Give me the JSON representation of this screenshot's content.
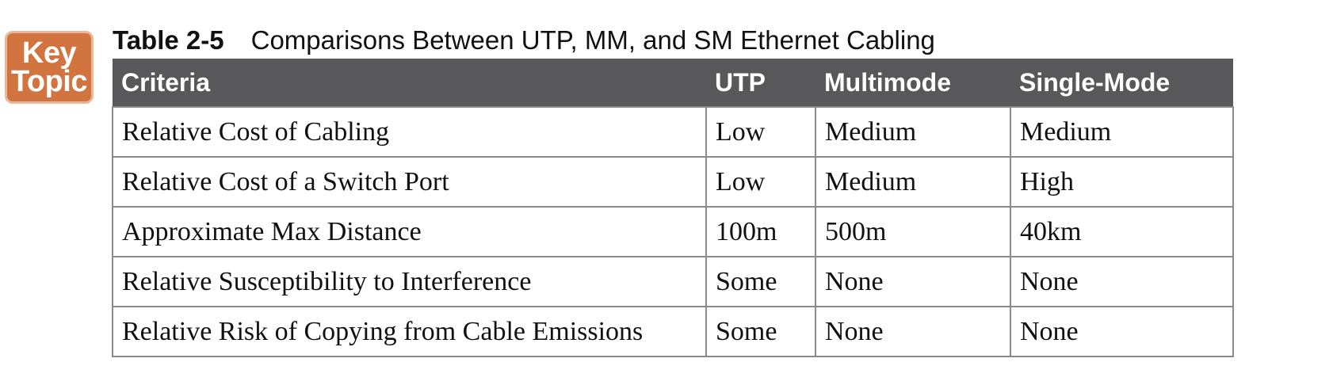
{
  "badge": {
    "line1": "Key",
    "line2": "Topic",
    "color": "#d1743f"
  },
  "caption": {
    "number": "Table 2-5",
    "title": "Comparisons Between UTP, MM, and SM Ethernet Cabling"
  },
  "table": {
    "header_color": "#58585a",
    "columns": [
      "Criteria",
      "UTP",
      "Multimode",
      "Single-Mode"
    ],
    "rows": [
      [
        "Relative Cost of Cabling",
        "Low",
        "Medium",
        "Medium"
      ],
      [
        "Relative Cost of a Switch Port",
        "Low",
        "Medium",
        "High"
      ],
      [
        "Approximate Max Distance",
        "100m",
        "500m",
        "40km"
      ],
      [
        "Relative Susceptibility to Interference",
        "Some",
        "None",
        "None"
      ],
      [
        "Relative Risk of Copying from Cable Emissions",
        "Some",
        "None",
        "None"
      ]
    ]
  }
}
